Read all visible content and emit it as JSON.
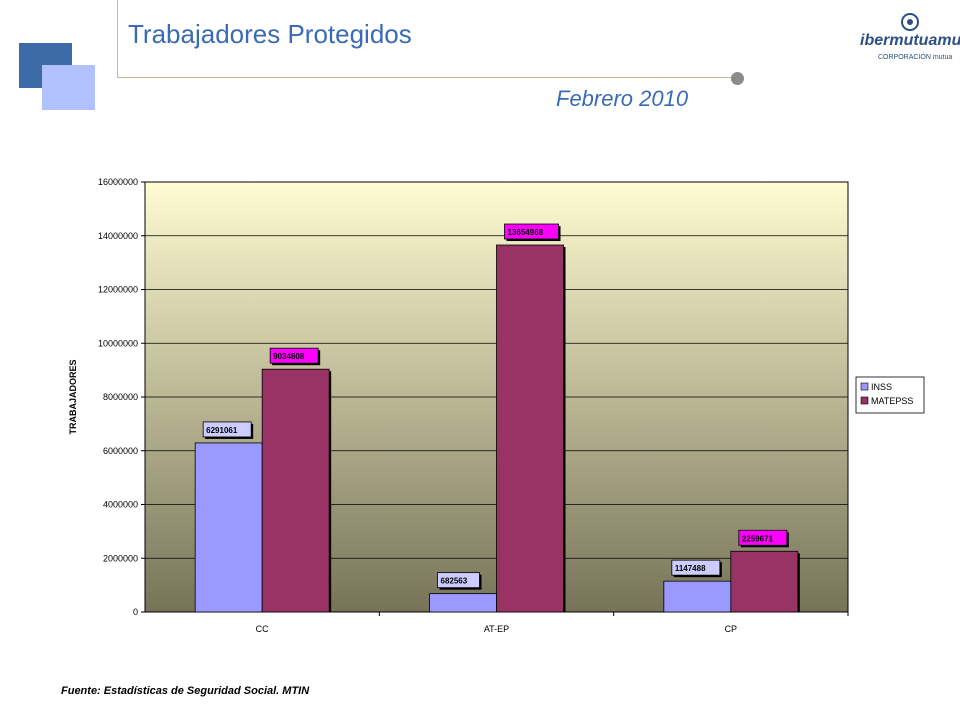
{
  "header": {
    "title": "Trabajadores Protegidos",
    "subtitle": "Febrero 2010",
    "logo_text": "ibermutuamur",
    "logo_sub": "CORPORACIÓN mutua"
  },
  "footer": {
    "source": "Fuente: Estadísticas de Seguridad Social. MTIN"
  },
  "colors": {
    "accent": "#3b6bb5",
    "inss": "#9999ff",
    "matepss": "#993366",
    "matepss_label_bg": "#ff00ff",
    "plot_top": "#fffcd2",
    "plot_bottom": "#777359"
  },
  "chart_data": {
    "type": "bar",
    "categories": [
      "CC",
      "AT-EP",
      "CP"
    ],
    "series": [
      {
        "name": "INSS",
        "values": [
          6291061,
          682563,
          1147488
        ]
      },
      {
        "name": "MATEPSS",
        "values": [
          9034608,
          13654968,
          2259671
        ]
      }
    ],
    "data_labels": [
      [
        "6291061",
        "682563",
        "1147488"
      ],
      [
        "9034608",
        "13654968",
        "2259671"
      ]
    ],
    "title": "",
    "xlabel": "",
    "ylabel": "TRABAJADORES",
    "ylim": [
      0,
      16000000
    ],
    "yticks": [
      0,
      2000000,
      4000000,
      6000000,
      8000000,
      10000000,
      12000000,
      14000000,
      16000000
    ],
    "ytick_labels": [
      "0",
      "2000000",
      "4000000",
      "6000000",
      "8000000",
      "10000000",
      "12000000",
      "14000000",
      "16000000"
    ],
    "grid": true,
    "legend_position": "right"
  }
}
